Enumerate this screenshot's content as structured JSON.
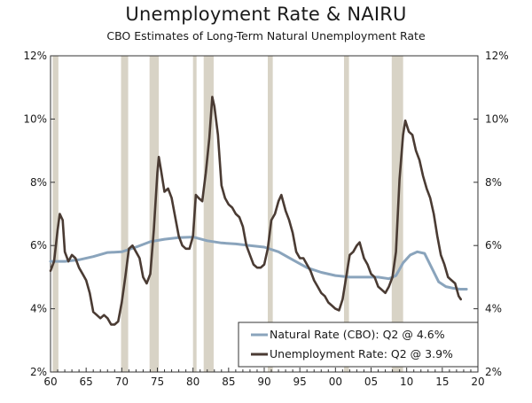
{
  "chart_data": {
    "type": "line",
    "title": "Unemployment Rate & NAIRU",
    "subtitle": "CBO Estimates of Long-Term Natural Unemployment Rate",
    "xlim": [
      60,
      20
    ],
    "xticks": [
      {
        "label": "60",
        "year": 1960
      },
      {
        "label": "65",
        "year": 1965
      },
      {
        "label": "70",
        "year": 1970
      },
      {
        "label": "75",
        "year": 1975
      },
      {
        "label": "80",
        "year": 1980
      },
      {
        "label": "85",
        "year": 1985
      },
      {
        "label": "90",
        "year": 1990
      },
      {
        "label": "95",
        "year": 1995
      },
      {
        "label": "00",
        "year": 2000
      },
      {
        "label": "05",
        "year": 2005
      },
      {
        "label": "10",
        "year": 2010
      },
      {
        "label": "15",
        "year": 2015
      },
      {
        "label": "20",
        "year": 2020
      }
    ],
    "ylim": [
      2,
      12
    ],
    "yticks_left": [
      "2%",
      "4%",
      "6%",
      "8%",
      "10%",
      "12%"
    ],
    "yticks_right": [
      "2%",
      "4%",
      "6%",
      "8%",
      "10%",
      "12%"
    ],
    "recessions": [
      [
        1960.3,
        1961.1
      ],
      [
        1969.9,
        1970.9
      ],
      [
        1973.9,
        1975.2
      ],
      [
        1980.0,
        1980.5
      ],
      [
        1981.5,
        1982.9
      ],
      [
        1990.5,
        1991.2
      ],
      [
        2001.2,
        2001.9
      ],
      [
        2007.9,
        2009.5
      ]
    ],
    "series": [
      {
        "name": "Natural Rate (CBO)",
        "legend_label": "Natural Rate (CBO): Q2 @ 4.6%",
        "color": "#8aa4bc",
        "points": [
          [
            1960,
            5.5
          ],
          [
            1962,
            5.5
          ],
          [
            1964,
            5.55
          ],
          [
            1966,
            5.65
          ],
          [
            1968,
            5.78
          ],
          [
            1970,
            5.8
          ],
          [
            1972,
            5.95
          ],
          [
            1974,
            6.12
          ],
          [
            1976,
            6.2
          ],
          [
            1978,
            6.25
          ],
          [
            1980,
            6.27
          ],
          [
            1982,
            6.15
          ],
          [
            1984,
            6.08
          ],
          [
            1986,
            6.05
          ],
          [
            1988,
            6.0
          ],
          [
            1990,
            5.95
          ],
          [
            1992,
            5.8
          ],
          [
            1994,
            5.55
          ],
          [
            1996,
            5.3
          ],
          [
            1998,
            5.15
          ],
          [
            2000,
            5.05
          ],
          [
            2002,
            5.0
          ],
          [
            2004,
            5.0
          ],
          [
            2006,
            5.0
          ],
          [
            2007.5,
            4.95
          ],
          [
            2008.5,
            5.05
          ],
          [
            2009.5,
            5.45
          ],
          [
            2010.5,
            5.7
          ],
          [
            2011.5,
            5.8
          ],
          [
            2012.5,
            5.75
          ],
          [
            2013.5,
            5.3
          ],
          [
            2014.5,
            4.85
          ],
          [
            2015.5,
            4.7
          ],
          [
            2016.5,
            4.65
          ],
          [
            2017.5,
            4.62
          ],
          [
            2018.4,
            4.62
          ]
        ]
      },
      {
        "name": "Unemployment Rate",
        "legend_label": "Unemployment Rate: Q2 @ 3.9%",
        "color": "#4a3b33",
        "points": [
          [
            1960,
            5.2
          ],
          [
            1960.5,
            5.5
          ],
          [
            1961,
            6.5
          ],
          [
            1961.3,
            7.0
          ],
          [
            1961.7,
            6.8
          ],
          [
            1962,
            5.8
          ],
          [
            1962.5,
            5.5
          ],
          [
            1963,
            5.7
          ],
          [
            1963.5,
            5.6
          ],
          [
            1964,
            5.3
          ],
          [
            1964.5,
            5.1
          ],
          [
            1965,
            4.9
          ],
          [
            1965.5,
            4.5
          ],
          [
            1966,
            3.9
          ],
          [
            1966.5,
            3.8
          ],
          [
            1967,
            3.7
          ],
          [
            1967.5,
            3.8
          ],
          [
            1968,
            3.7
          ],
          [
            1968.5,
            3.5
          ],
          [
            1969,
            3.5
          ],
          [
            1969.5,
            3.6
          ],
          [
            1970,
            4.2
          ],
          [
            1970.5,
            5.0
          ],
          [
            1971,
            5.9
          ],
          [
            1971.5,
            6.0
          ],
          [
            1972,
            5.8
          ],
          [
            1972.5,
            5.6
          ],
          [
            1973,
            5.0
          ],
          [
            1973.5,
            4.8
          ],
          [
            1974,
            5.1
          ],
          [
            1974.5,
            6.5
          ],
          [
            1975,
            8.3
          ],
          [
            1975.2,
            8.8
          ],
          [
            1975.5,
            8.4
          ],
          [
            1976,
            7.7
          ],
          [
            1976.5,
            7.8
          ],
          [
            1977,
            7.5
          ],
          [
            1977.5,
            6.9
          ],
          [
            1978,
            6.3
          ],
          [
            1978.5,
            6.0
          ],
          [
            1979,
            5.9
          ],
          [
            1979.5,
            5.9
          ],
          [
            1980,
            6.3
          ],
          [
            1980.4,
            7.6
          ],
          [
            1980.8,
            7.5
          ],
          [
            1981.3,
            7.4
          ],
          [
            1981.8,
            8.3
          ],
          [
            1982.3,
            9.4
          ],
          [
            1982.7,
            10.7
          ],
          [
            1983,
            10.4
          ],
          [
            1983.5,
            9.5
          ],
          [
            1984,
            7.9
          ],
          [
            1984.5,
            7.5
          ],
          [
            1985,
            7.3
          ],
          [
            1985.5,
            7.2
          ],
          [
            1986,
            7.0
          ],
          [
            1986.5,
            6.9
          ],
          [
            1987,
            6.6
          ],
          [
            1987.5,
            6.0
          ],
          [
            1988,
            5.7
          ],
          [
            1988.5,
            5.4
          ],
          [
            1989,
            5.3
          ],
          [
            1989.5,
            5.3
          ],
          [
            1990,
            5.4
          ],
          [
            1990.5,
            5.9
          ],
          [
            1991,
            6.8
          ],
          [
            1991.5,
            7.0
          ],
          [
            1992,
            7.4
          ],
          [
            1992.4,
            7.6
          ],
          [
            1993,
            7.1
          ],
          [
            1993.5,
            6.8
          ],
          [
            1994,
            6.4
          ],
          [
            1994.5,
            5.8
          ],
          [
            1995,
            5.6
          ],
          [
            1995.5,
            5.6
          ],
          [
            1996,
            5.4
          ],
          [
            1996.5,
            5.2
          ],
          [
            1997,
            4.9
          ],
          [
            1997.5,
            4.7
          ],
          [
            1998,
            4.5
          ],
          [
            1998.5,
            4.4
          ],
          [
            1999,
            4.2
          ],
          [
            1999.5,
            4.1
          ],
          [
            2000,
            4.0
          ],
          [
            2000.5,
            3.95
          ],
          [
            2001,
            4.3
          ],
          [
            2001.5,
            5.0
          ],
          [
            2002,
            5.7
          ],
          [
            2002.5,
            5.8
          ],
          [
            2003,
            6.0
          ],
          [
            2003.4,
            6.1
          ],
          [
            2004,
            5.6
          ],
          [
            2004.5,
            5.4
          ],
          [
            2005,
            5.1
          ],
          [
            2005.5,
            5.0
          ],
          [
            2006,
            4.7
          ],
          [
            2006.5,
            4.6
          ],
          [
            2007,
            4.5
          ],
          [
            2007.5,
            4.7
          ],
          [
            2008,
            5.0
          ],
          [
            2008.5,
            5.8
          ],
          [
            2009,
            8.1
          ],
          [
            2009.5,
            9.5
          ],
          [
            2009.8,
            9.95
          ],
          [
            2010.3,
            9.6
          ],
          [
            2010.8,
            9.5
          ],
          [
            2011.3,
            9.0
          ],
          [
            2011.8,
            8.7
          ],
          [
            2012.3,
            8.2
          ],
          [
            2012.8,
            7.8
          ],
          [
            2013.3,
            7.5
          ],
          [
            2013.8,
            7.0
          ],
          [
            2014.3,
            6.3
          ],
          [
            2014.8,
            5.7
          ],
          [
            2015.3,
            5.4
          ],
          [
            2015.8,
            5.0
          ],
          [
            2016.3,
            4.9
          ],
          [
            2016.8,
            4.8
          ],
          [
            2017.3,
            4.4
          ],
          [
            2017.6,
            4.3
          ]
        ]
      }
    ]
  }
}
